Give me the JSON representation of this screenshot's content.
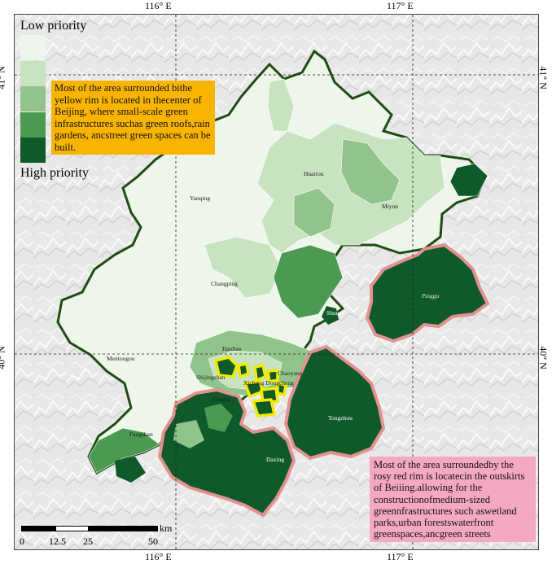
{
  "ticks": {
    "lon_116": "116° E",
    "lon_117": "117° E",
    "lat_41": "41° N",
    "lat_40": "40° N"
  },
  "legend": {
    "low": "Low priority",
    "high": "High priority",
    "classes": [
      "#eef5ea",
      "#c7e3bf",
      "#91c48a",
      "#4c9a52",
      "#0e5a2a"
    ]
  },
  "notes": {
    "orange": "Most of the area surrounded bithe yellow rim is located in thecenter of Beijing, where small-scale green infrastructures suchas green roofs,rain gardens, ancstreet green spaces can be built.",
    "pink": "Most of the area surroundedby the rosy red rim is locatecin the outskirts of Beiiing.allowing for the constructionofmedium-sized greennfrastructures such aswetland parks,urban forestswaterfront greenspaces,ancgreen streets"
  },
  "places": {
    "huairou": "Huairou",
    "yanqing": "Yanqing",
    "miyun": "Miyun",
    "changping": "Changping",
    "pinggu": "Pinggu",
    "shunyi": "Shunyi",
    "haidian": "Haidian",
    "mentougou": "Mentougou",
    "chaoyang": "Chaoyang",
    "shijingshan": "Shijingshan",
    "xicheng_dongcheng": "Xicheng Dongcheng",
    "fengtai": "Fengtai",
    "tongzhou": "Tongzhou",
    "fangshan": "Fangshan",
    "daxing": "Daxing"
  },
  "scale": {
    "unit": "km",
    "labels": [
      "0",
      "12.5",
      "25",
      "50"
    ]
  },
  "colors": {
    "boundary": "#1f4d12",
    "yellow_rim": "#f2ea00",
    "pink_rim": "#e39191",
    "note_orange": "#f8b400",
    "note_pink": "#f4a9c0"
  }
}
